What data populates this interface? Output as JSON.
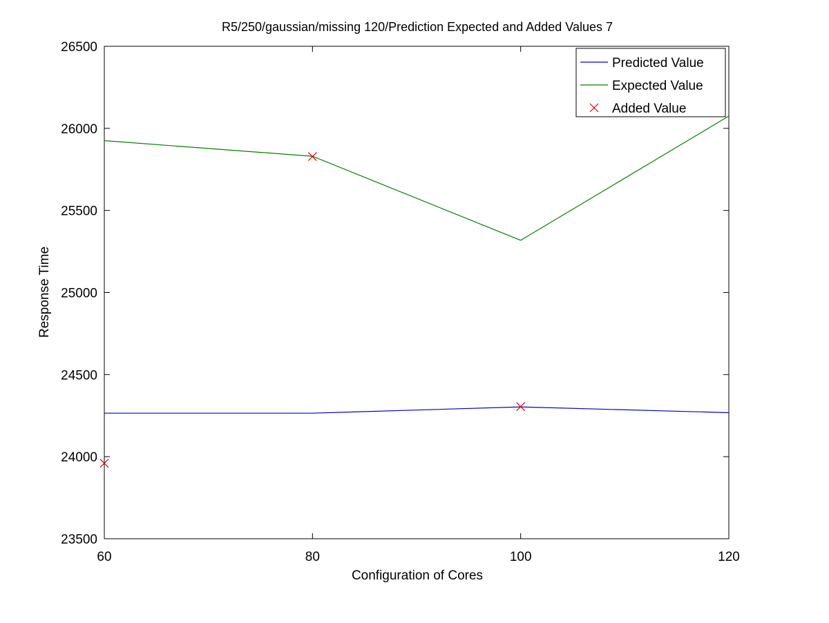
{
  "chart_data": {
    "type": "line",
    "title": "R5/250/gaussian/missing 120/Prediction Expected and Added Values 7",
    "xlabel": "Configuration of Cores",
    "ylabel": "Response Time",
    "xlim": [
      60,
      120
    ],
    "ylim": [
      23500,
      26500
    ],
    "xticks": [
      60,
      80,
      100,
      120
    ],
    "yticks": [
      23500,
      24000,
      24500,
      25000,
      25500,
      26000,
      26500
    ],
    "xtick_labels": [
      "60",
      "80",
      "100",
      "120"
    ],
    "ytick_labels": [
      "23500",
      "24000",
      "24500",
      "25000",
      "25500",
      "26000",
      "26500"
    ],
    "grid": false,
    "legend_position": "top-right",
    "series": [
      {
        "name": "Predicted Value",
        "kind": "line",
        "color": "#0000cc",
        "x": [
          60,
          80,
          100,
          120
        ],
        "y": [
          24265,
          24265,
          24303,
          24268
        ]
      },
      {
        "name": "Expected Value",
        "kind": "line",
        "color": "#007f00",
        "x": [
          60,
          80,
          100,
          120
        ],
        "y": [
          25925,
          25830,
          25318,
          26075
        ]
      },
      {
        "name": "Added Value",
        "kind": "marker",
        "marker": "x",
        "color": "#e00000",
        "x": [
          60,
          80,
          100
        ],
        "y": [
          23960,
          25828,
          24305
        ]
      }
    ]
  }
}
